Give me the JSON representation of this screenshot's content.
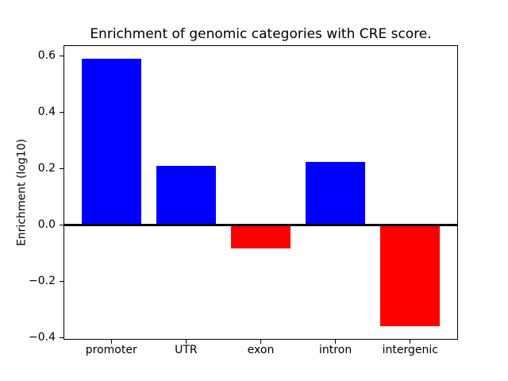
{
  "chart_data": {
    "type": "bar",
    "title": "Enrichment of genomic categories with CRE score.",
    "xlabel": "",
    "ylabel": "Enrichment (log10)",
    "categories": [
      "promoter",
      "UTR",
      "exon",
      "intron",
      "intergenic"
    ],
    "values": [
      0.59,
      0.21,
      -0.083,
      0.224,
      -0.36
    ],
    "bar_colors": [
      "#0000ff",
      "#0000ff",
      "#ff0000",
      "#0000ff",
      "#ff0000"
    ],
    "positive_color": "#0000ff",
    "negative_color": "#ff0000",
    "axis_color": "#000000",
    "background_color": "#ffffff",
    "yticks": [
      {
        "value": 0.6,
        "label": "0.6"
      },
      {
        "value": 0.4,
        "label": "0.4"
      },
      {
        "value": 0.2,
        "label": "0.2"
      },
      {
        "value": 0.0,
        "label": "0.0"
      },
      {
        "value": -0.2,
        "label": "−0.2"
      },
      {
        "value": -0.4,
        "label": "−0.4"
      }
    ],
    "ylim": [
      -0.4075,
      0.6375
    ],
    "bar_width_fraction": 0.8,
    "x_margin": 0.64,
    "grid": false,
    "zero_line": true,
    "legend_position": "none"
  }
}
